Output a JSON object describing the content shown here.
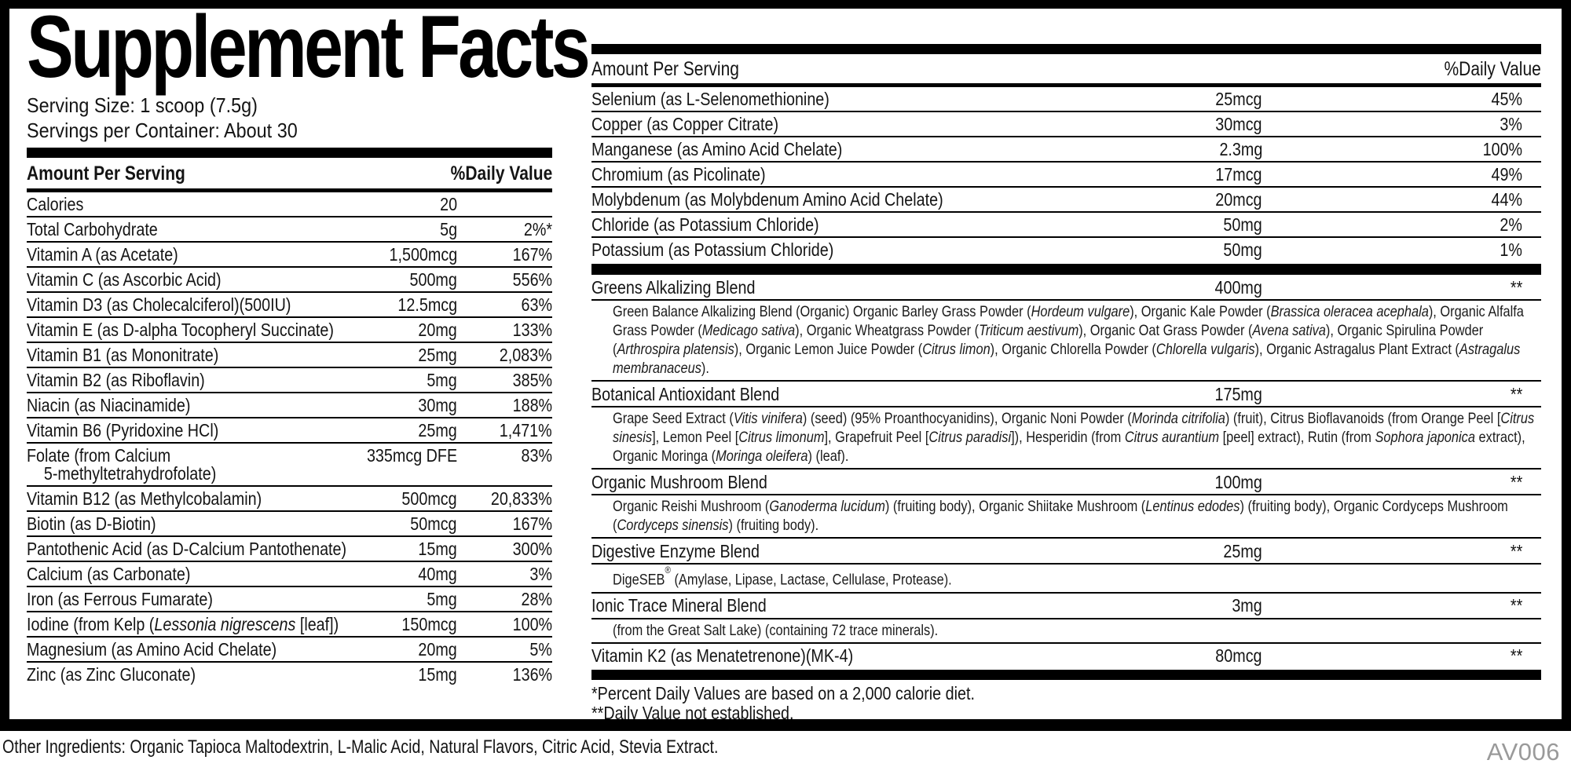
{
  "colors": {
    "ink": "#141414",
    "bar_black": "#000000",
    "code_gray": "#9a9a9a",
    "background": "#ffffff"
  },
  "header": {
    "title": "Supplement Facts",
    "serving_size": "Serving Size: 1 scoop (7.5g)",
    "servings_per_container": "Servings per Container: About 30"
  },
  "left_table": {
    "columns": {
      "amount_header": "Amount Per Serving",
      "dv_header": "%Daily Value"
    },
    "rows": [
      {
        "name": "Calories",
        "amount": "20",
        "dv": ""
      },
      {
        "name": "Total Carbohydrate",
        "amount": "5g",
        "dv": "2%*"
      },
      {
        "name": "Vitamin A (as Acetate)",
        "amount": "1,500mcg",
        "dv": "167%"
      },
      {
        "name": "Vitamin C (as Ascorbic Acid)",
        "amount": "500mg",
        "dv": "556%"
      },
      {
        "name": "Vitamin D3 (as Cholecalciferol)(500IU)",
        "amount": "12.5mcg",
        "dv": "63%"
      },
      {
        "name": "Vitamin E (as D-alpha Tocopheryl Succinate)",
        "amount": "20mg",
        "dv": "133%"
      },
      {
        "name": "Vitamin B1 (as Mononitrate)",
        "amount": "25mg",
        "dv": "2,083%"
      },
      {
        "name": "Vitamin B2 (as Riboflavin)",
        "amount": "5mg",
        "dv": "385%"
      },
      {
        "name": "Niacin (as Niacinamide)",
        "amount": "30mg",
        "dv": "188%"
      },
      {
        "name": "Vitamin B6 (Pyridoxine HCl)",
        "amount": "25mg",
        "dv": "1,471%"
      },
      {
        "name": "Folate (from Calcium",
        "name_line2": "5-methyltetrahydrofolate)",
        "amount": "335mcg DFE",
        "dv": "83%"
      },
      {
        "name": "Vitamin B12 (as Methylcobalamin)",
        "amount": "500mcg",
        "dv": "20,833%"
      },
      {
        "name": "Biotin (as D-Biotin)",
        "amount": "50mcg",
        "dv": "167%"
      },
      {
        "name": "Pantothenic Acid (as D-Calcium Pantothenate)",
        "amount": "15mg",
        "dv": "300%"
      },
      {
        "name": "Calcium (as Carbonate)",
        "amount": "40mg",
        "dv": "3%"
      },
      {
        "name": "Iron (as Ferrous Fumarate)",
        "amount": "5mg",
        "dv": "28%"
      },
      {
        "name_segments": [
          {
            "t": "Iodine (from Kelp ("
          },
          {
            "t": "Lessonia nigrescens",
            "i": true
          },
          {
            "t": " [leaf])"
          }
        ],
        "amount": "150mcg",
        "dv": "100%"
      },
      {
        "name": "Magnesium (as Amino Acid Chelate)",
        "amount": "20mg",
        "dv": "5%"
      },
      {
        "name": "Zinc (as Zinc Gluconate)",
        "amount": "15mg",
        "dv": "136%"
      }
    ]
  },
  "right_table": {
    "columns": {
      "amount_header": "Amount Per Serving",
      "dv_header": "%Daily Value"
    },
    "rows": [
      {
        "name": "Selenium (as L-Selenomethionine)",
        "amount": "25mcg",
        "dv": "45%"
      },
      {
        "name": "Copper (as Copper Citrate)",
        "amount": "30mcg",
        "dv": "3%"
      },
      {
        "name": "Manganese (as Amino Acid Chelate)",
        "amount": "2.3mg",
        "dv": "100%"
      },
      {
        "name": "Chromium (as Picolinate)",
        "amount": "17mcg",
        "dv": "49%"
      },
      {
        "name": "Molybdenum (as Molybdenum Amino Acid Chelate)",
        "amount": "20mcg",
        "dv": "44%"
      },
      {
        "name": "Chloride (as Potassium Chloride)",
        "amount": "50mg",
        "dv": "2%"
      },
      {
        "name": "Potassium (as Potassium Chloride)",
        "amount": "50mg",
        "dv": "1%"
      }
    ],
    "blends": [
      {
        "name": "Greens Alkalizing Blend",
        "amount": "400mg",
        "dv": "**",
        "desc_segments": [
          {
            "t": "Green Balance Alkalizing Blend (Organic) Organic Barley Grass Powder ("
          },
          {
            "t": "Hordeum vulgare",
            "i": true
          },
          {
            "t": "), Organic Kale Powder ("
          },
          {
            "t": "Brassica oleracea acephala",
            "i": true
          },
          {
            "t": "), Organic Alfalfa Grass Powder ("
          },
          {
            "t": "Medicago sativa",
            "i": true
          },
          {
            "t": "), Organic Wheatgrass Powder ("
          },
          {
            "t": "Triticum aestivum",
            "i": true
          },
          {
            "t": "), Organic Oat Grass Powder ("
          },
          {
            "t": "Avena sativa",
            "i": true
          },
          {
            "t": "), Organic Spirulina Powder ("
          },
          {
            "t": "Arthrospira platensis",
            "i": true
          },
          {
            "t": "), Organic Lemon Juice Powder ("
          },
          {
            "t": "Citrus limon",
            "i": true
          },
          {
            "t": "), Organic Chlorella Powder ("
          },
          {
            "t": "Chlorella vulgaris",
            "i": true
          },
          {
            "t": "), Organic Astragalus Plant Extract ("
          },
          {
            "t": "Astragalus membranaceus",
            "i": true
          },
          {
            "t": ")."
          }
        ]
      },
      {
        "name": "Botanical Antioxidant Blend",
        "amount": "175mg",
        "dv": "**",
        "desc_segments": [
          {
            "t": "Grape Seed Extract ("
          },
          {
            "t": "Vitis vinifera",
            "i": true
          },
          {
            "t": ") (seed) (95% Proanthocyanidins), Organic Noni Powder ("
          },
          {
            "t": "Morinda citrifolia",
            "i": true
          },
          {
            "t": ") (fruit), Citrus Bioflavanoids (from Orange Peel ["
          },
          {
            "t": "Citrus sinesis",
            "i": true
          },
          {
            "t": "], Lemon Peel ["
          },
          {
            "t": "Citrus limonum",
            "i": true
          },
          {
            "t": "], Grapefruit Peel ["
          },
          {
            "t": "Citrus paradisi",
            "i": true
          },
          {
            "t": "]), Hesperidin (from "
          },
          {
            "t": "Citrus aurantium",
            "i": true
          },
          {
            "t": " [peel] extract), Rutin (from "
          },
          {
            "t": "Sophora japonica",
            "i": true
          },
          {
            "t": " extract), Organic Moringa ("
          },
          {
            "t": "Moringa oleifera",
            "i": true
          },
          {
            "t": ") (leaf)."
          }
        ]
      },
      {
        "name": "Organic Mushroom Blend",
        "amount": "100mg",
        "dv": "**",
        "desc_segments": [
          {
            "t": "Organic Reishi Mushroom ("
          },
          {
            "t": "Ganoderma lucidum",
            "i": true
          },
          {
            "t": ") (fruiting body), Organic Shiitake Mushroom ("
          },
          {
            "t": "Lentinus edodes",
            "i": true
          },
          {
            "t": ") (fruiting body), Organic Cordyceps Mushroom ("
          },
          {
            "t": "Cordyceps sinensis",
            "i": true
          },
          {
            "t": ") (fruiting body)."
          }
        ]
      },
      {
        "name": "Digestive Enzyme Blend",
        "amount": "25mg",
        "dv": "**",
        "desc_segments": [
          {
            "t": "DigeSEB"
          },
          {
            "t": "®",
            "sup": true
          },
          {
            "t": " (Amylase, Lipase, Lactase, Cellulase, Protease)."
          }
        ]
      },
      {
        "name": "Ionic Trace Mineral Blend",
        "amount": "3mg",
        "dv": "**",
        "desc_segments": [
          {
            "t": "(from the Great Salt Lake) (containing 72 trace minerals)."
          }
        ]
      },
      {
        "name": "Vitamin K2 (as Menatetrenone)(MK-4)",
        "amount": "80mcg",
        "dv": "**"
      }
    ],
    "footnotes": [
      "*Percent Daily Values are based on a 2,000 calorie diet.",
      "**Daily Value not established."
    ]
  },
  "footer": {
    "other_ingredients": "Other Ingredients: Organic Tapioca Maltodextrin, L-Malic Acid, Natural Flavors, Citric Acid, Stevia Extract.",
    "code": "AV006"
  }
}
